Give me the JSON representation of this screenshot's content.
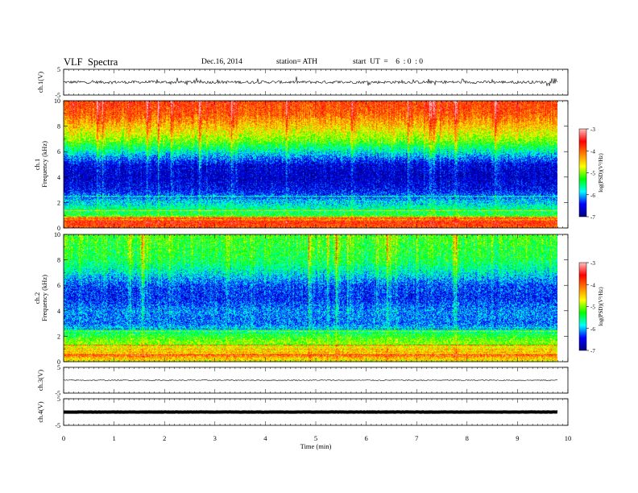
{
  "header": {
    "title": "VLF  Spectra",
    "date": "Dec.16, 2014",
    "station": "station= ATH",
    "start": "start  UT  =    6  : 0  : 0"
  },
  "chart_data": {
    "type": "heatmap",
    "x_axis": {
      "label": "Time  (min)",
      "range": [
        0,
        10
      ],
      "ticks": [
        "0",
        "1",
        "2",
        "3",
        "4",
        "5",
        "6",
        "7",
        "8",
        "9",
        "10"
      ],
      "data_end": 9.8
    },
    "panels": [
      {
        "type": "line",
        "ylabel": "ch.1(V)",
        "ylim": [
          -5,
          5
        ],
        "ticks": [
          "5",
          "-5"
        ],
        "trace": "noisy waveform with spikes, roughly -0.5 to 0.5 V"
      },
      {
        "type": "heatmap",
        "ylabel": [
          "ch.1",
          "Frequency  (kHz)"
        ],
        "ylim": [
          0,
          10
        ],
        "ticks": [
          "0",
          "2",
          "4",
          "6",
          "8",
          "10"
        ],
        "colorbar": {
          "label": "log(PSD)(V²/Hz)",
          "range": [
            -7,
            -3
          ],
          "ticks": [
            "-3",
            "-4",
            "-5",
            "-6",
            "-7"
          ]
        },
        "profile_log_psd": [
          {
            "f_khz": 0.0,
            "v": -4.2
          },
          {
            "f_khz": 0.5,
            "v": -3.6
          },
          {
            "f_khz": 1.0,
            "v": -5.3
          },
          {
            "f_khz": 2.0,
            "v": -5.9
          },
          {
            "f_khz": 3.0,
            "v": -6.5
          },
          {
            "f_khz": 4.0,
            "v": -6.7
          },
          {
            "f_khz": 5.0,
            "v": -6.6
          },
          {
            "f_khz": 6.0,
            "v": -5.8
          },
          {
            "f_khz": 7.0,
            "v": -5.0
          },
          {
            "f_khz": 8.0,
            "v": -4.5
          },
          {
            "f_khz": 9.0,
            "v": -4.0
          },
          {
            "f_khz": 10.0,
            "v": -3.8
          }
        ]
      },
      {
        "type": "heatmap",
        "ylabel": [
          "ch.2",
          "Frequency  (kHz)"
        ],
        "ylim": [
          0,
          10
        ],
        "ticks": [
          "0",
          "2",
          "4",
          "6",
          "8",
          "10"
        ],
        "colorbar": {
          "label": "log(PSD)(V²/Hz)",
          "range": [
            -7,
            -3
          ],
          "ticks": [
            "-3",
            "-4",
            "-5",
            "-6",
            "-7"
          ]
        },
        "profile_log_psd": [
          {
            "f_khz": 0.0,
            "v": -4.8
          },
          {
            "f_khz": 0.5,
            "v": -4.2
          },
          {
            "f_khz": 1.0,
            "v": -4.6
          },
          {
            "f_khz": 2.0,
            "v": -5.3
          },
          {
            "f_khz": 3.0,
            "v": -6.2
          },
          {
            "f_khz": 4.0,
            "v": -6.1
          },
          {
            "f_khz": 5.0,
            "v": -6.4
          },
          {
            "f_khz": 6.0,
            "v": -6.3
          },
          {
            "f_khz": 7.0,
            "v": -5.8
          },
          {
            "f_khz": 8.0,
            "v": -5.4
          },
          {
            "f_khz": 9.0,
            "v": -5.3
          },
          {
            "f_khz": 10.0,
            "v": -5.2
          }
        ]
      },
      {
        "type": "line",
        "ylabel": "ch.3(V)",
        "ylim": [
          -5,
          5
        ],
        "ticks": [
          "5",
          "-5"
        ],
        "trace": "nearly flat, about 0 V with small noise"
      },
      {
        "type": "line",
        "ylabel": "ch.4(V)",
        "ylim": [
          -5,
          5
        ],
        "ticks": [
          "5",
          "-5"
        ],
        "trace": "flat, about 0 V"
      }
    ],
    "colormap": [
      "#000080",
      "#0000ff",
      "#00ffff",
      "#00ff00",
      "#ffff00",
      "#ff7f00",
      "#ff0000",
      "#ffc0c0"
    ]
  }
}
